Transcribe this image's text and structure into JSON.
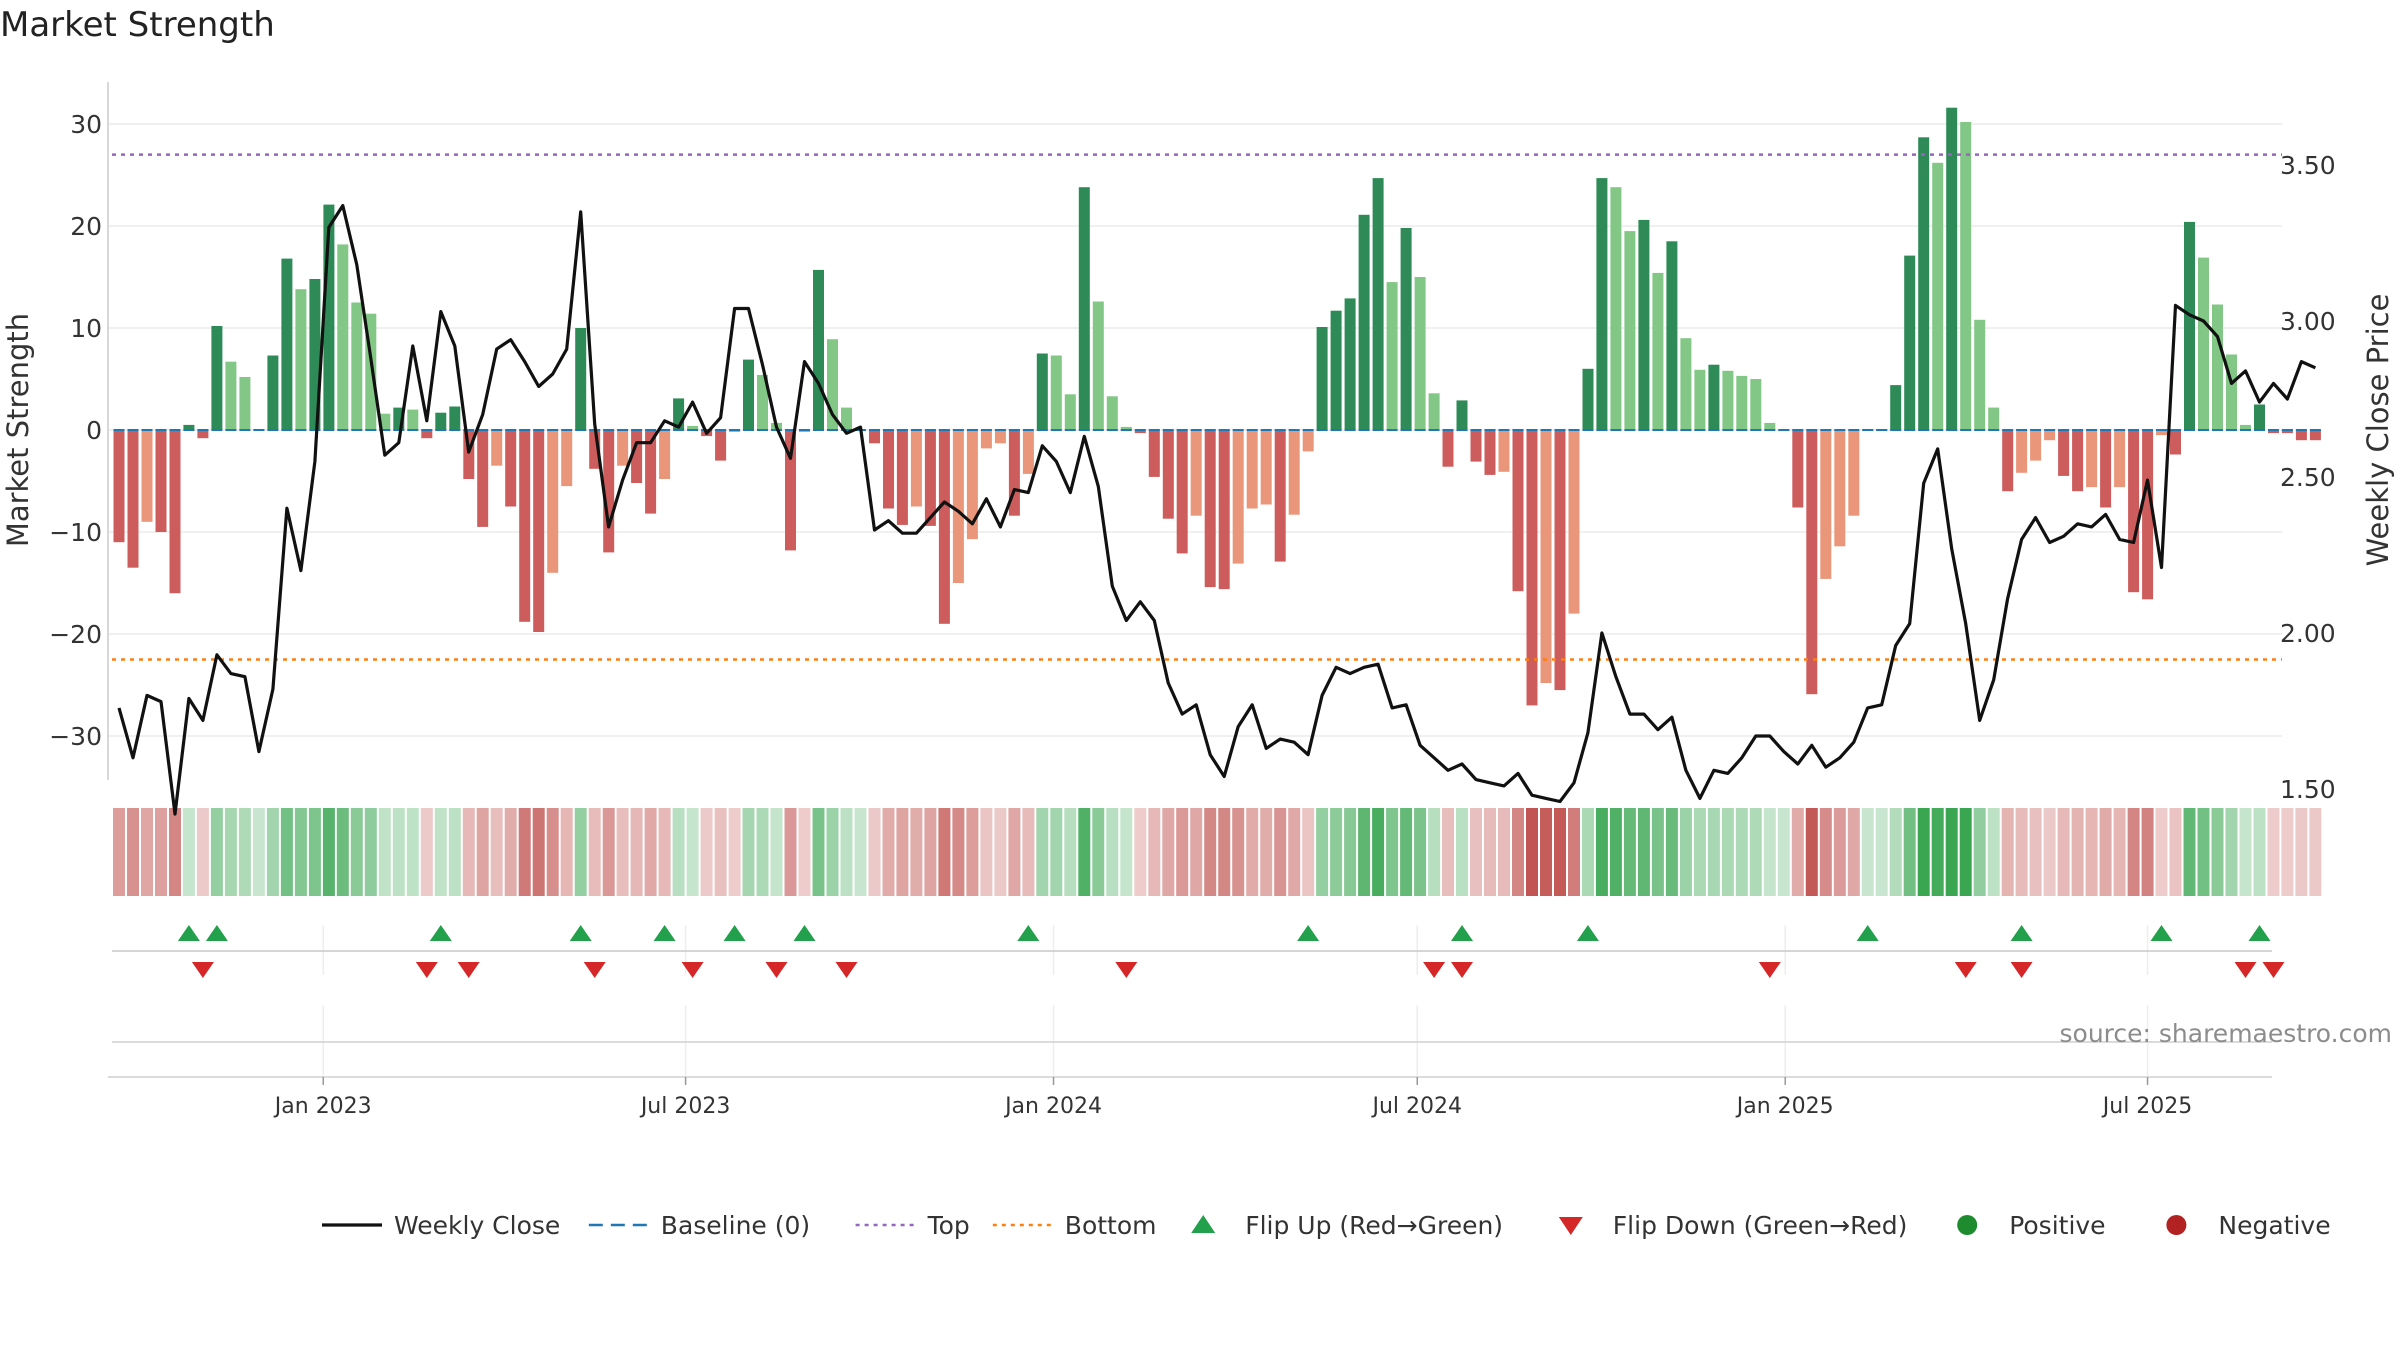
{
  "chart_data": {
    "type": "bar",
    "title": "Market Strength",
    "ylabel": "Market Strength",
    "y2label": "Weekly Close Price",
    "source": "source: sharemaestro.com",
    "ylim": [
      -35,
      35
    ],
    "y2lim": [
      1.25,
      3.5
    ],
    "yticks": [
      30,
      20,
      10,
      0,
      -10,
      -20,
      -30
    ],
    "ytick_labels": [
      "30",
      "20",
      "10",
      "0",
      "−10",
      "−20",
      "−30"
    ],
    "y2ticks": [
      3.5,
      3.0,
      2.5,
      2.0,
      1.5
    ],
    "y2tick_labels": [
      "3.50",
      "3.00",
      "2.50",
      "2.00",
      "1.50"
    ],
    "xticks": [
      {
        "label": "Jan 2023",
        "week": 14.6
      },
      {
        "label": "Jul 2023",
        "week": 40.5
      },
      {
        "label": "Jan 2024",
        "week": 66.8
      },
      {
        "label": "Jul 2024",
        "week": 92.8
      },
      {
        "label": "Jan 2025",
        "week": 119.1
      },
      {
        "label": "Jul 2025",
        "week": 145.0
      }
    ],
    "top_line": 27,
    "bottom_line": -22.5,
    "baseline": 0,
    "colors": {
      "strong_pos": "#2e8b57",
      "weak_pos": "#82c785",
      "strong_neg": "#cd5c5c",
      "weak_neg": "#e9967a",
      "close_line": "#111111",
      "baseline": "#1f77b4",
      "top": "#9467bd",
      "bottom": "#ff7f0e",
      "flip_up": "#22a04b",
      "flip_down": "#d62728",
      "positive": "#1e8c2e",
      "negative": "#b22222"
    },
    "legend": [
      {
        "label": "Weekly Close",
        "kind": "line",
        "color": "#111111"
      },
      {
        "label": "Baseline (0)",
        "kind": "dash",
        "color": "#1f77b4"
      },
      {
        "label": "Top",
        "kind": "dot",
        "color": "#9467bd"
      },
      {
        "label": "Bottom",
        "kind": "dot",
        "color": "#ff7f0e"
      },
      {
        "label": "Flip Up (Red→Green)",
        "kind": "tri-up",
        "color": "#22a04b"
      },
      {
        "label": "Flip Down (Green→Red)",
        "kind": "tri-down",
        "color": "#d62728"
      },
      {
        "label": "Positive",
        "kind": "circle",
        "color": "#1e8c2e"
      },
      {
        "label": "Negative",
        "kind": "circle",
        "color": "#b22222"
      }
    ],
    "strength": [
      -11,
      -13.5,
      -9,
      -10,
      -16,
      0.5,
      -0.8,
      10.2,
      6.7,
      5.2,
      0,
      7.3,
      16.8,
      13.8,
      14.8,
      22.1,
      18.2,
      12.5,
      11.4,
      1.6,
      2.2,
      2,
      -0.8,
      1.7,
      2.3,
      -4.8,
      -9.5,
      -3.5,
      -7.5,
      -18.8,
      -19.8,
      -14,
      -5.5,
      10,
      -3.8,
      -12,
      -3.5,
      -5.2,
      -8.2,
      -4.8,
      3.1,
      0.4,
      -0.6,
      -3,
      -0.2,
      6.9,
      5.4,
      0.7,
      -11.8,
      -0.2,
      15.7,
      8.9,
      2.2,
      0,
      -1.3,
      -7.7,
      -9.3,
      -7.5,
      -9.4,
      -19,
      -15,
      -10.7,
      -1.8,
      -1.3,
      -8.4,
      -4.3,
      7.5,
      7.3,
      3.5,
      23.8,
      12.6,
      3.3,
      0.3,
      -0.3,
      -4.6,
      -8.7,
      -12.1,
      -8.4,
      -15.4,
      -15.6,
      -13.1,
      -7.7,
      -7.3,
      -12.9,
      -8.3,
      -2.1,
      10.1,
      11.7,
      12.9,
      21.1,
      24.7,
      14.5,
      19.8,
      15,
      3.6,
      -3.6,
      2.9,
      -3.1,
      -4.4,
      -4.1,
      -15.8,
      -27,
      -24.8,
      -25.5,
      -18,
      6,
      24.7,
      23.8,
      19.5,
      20.6,
      15.4,
      18.5,
      9,
      5.9,
      6.4,
      5.8,
      5.3,
      5,
      0.7,
      0,
      -7.6,
      -25.9,
      -14.6,
      -11.4,
      -8.4,
      0,
      0,
      4.4,
      17.1,
      28.7,
      26.2,
      31.6,
      30.2,
      10.8,
      2.2,
      -6,
      -4.2,
      -3,
      -1,
      -4.5,
      -6,
      -5.6,
      -7.6,
      -5.6,
      -15.9,
      -16.6,
      -0.5,
      -2.4,
      20.4,
      16.9,
      12.3,
      7.4,
      0.5,
      2.5,
      -0.3,
      -0.3,
      -1,
      -1
    ],
    "weekly_close": [
      1.76,
      1.6,
      1.8,
      1.78,
      1.42,
      1.79,
      1.72,
      1.93,
      1.87,
      1.86,
      1.62,
      1.82,
      2.4,
      2.2,
      2.55,
      3.3,
      3.37,
      3.18,
      2.88,
      2.57,
      2.61,
      2.92,
      2.68,
      3.03,
      2.92,
      2.58,
      2.7,
      2.91,
      2.94,
      2.87,
      2.79,
      2.83,
      2.91,
      3.35,
      2.67,
      2.34,
      2.49,
      2.61,
      2.61,
      2.68,
      2.66,
      2.74,
      2.64,
      2.69,
      3.04,
      3.04,
      2.86,
      2.66,
      2.56,
      2.87,
      2.8,
      2.7,
      2.64,
      2.66,
      2.33,
      2.36,
      2.32,
      2.32,
      2.37,
      2.42,
      2.39,
      2.35,
      2.43,
      2.34,
      2.46,
      2.45,
      2.6,
      2.55,
      2.45,
      2.63,
      2.47,
      2.15,
      2.04,
      2.1,
      2.04,
      1.84,
      1.74,
      1.77,
      1.61,
      1.54,
      1.7,
      1.77,
      1.63,
      1.66,
      1.65,
      1.61,
      1.8,
      1.89,
      1.87,
      1.89,
      1.9,
      1.76,
      1.77,
      1.64,
      1.6,
      1.56,
      1.58,
      1.53,
      1.52,
      1.51,
      1.55,
      1.48,
      1.47,
      1.46,
      1.52,
      1.68,
      2.0,
      1.86,
      1.74,
      1.74,
      1.69,
      1.73,
      1.56,
      1.47,
      1.56,
      1.55,
      1.6,
      1.67,
      1.67,
      1.62,
      1.58,
      1.64,
      1.57,
      1.6,
      1.65,
      1.76,
      1.77,
      1.96,
      2.03,
      2.48,
      2.59,
      2.27,
      2.03,
      1.72,
      1.85,
      2.11,
      2.3,
      2.37,
      2.29,
      2.31,
      2.35,
      2.34,
      2.38,
      2.3,
      2.29,
      2.49,
      2.21,
      3.05,
      3.02,
      3.0,
      2.95,
      2.8,
      2.84,
      2.74,
      2.8,
      2.75,
      2.87,
      2.85
    ],
    "flip_up_weeks": [
      5,
      7,
      23,
      33,
      39,
      44,
      49,
      65,
      85,
      96,
      105,
      125,
      136,
      146,
      153
    ],
    "flip_down_weeks": [
      6,
      22,
      25,
      34,
      41,
      47,
      52,
      72,
      94,
      96,
      118,
      132,
      136,
      152,
      154
    ]
  }
}
